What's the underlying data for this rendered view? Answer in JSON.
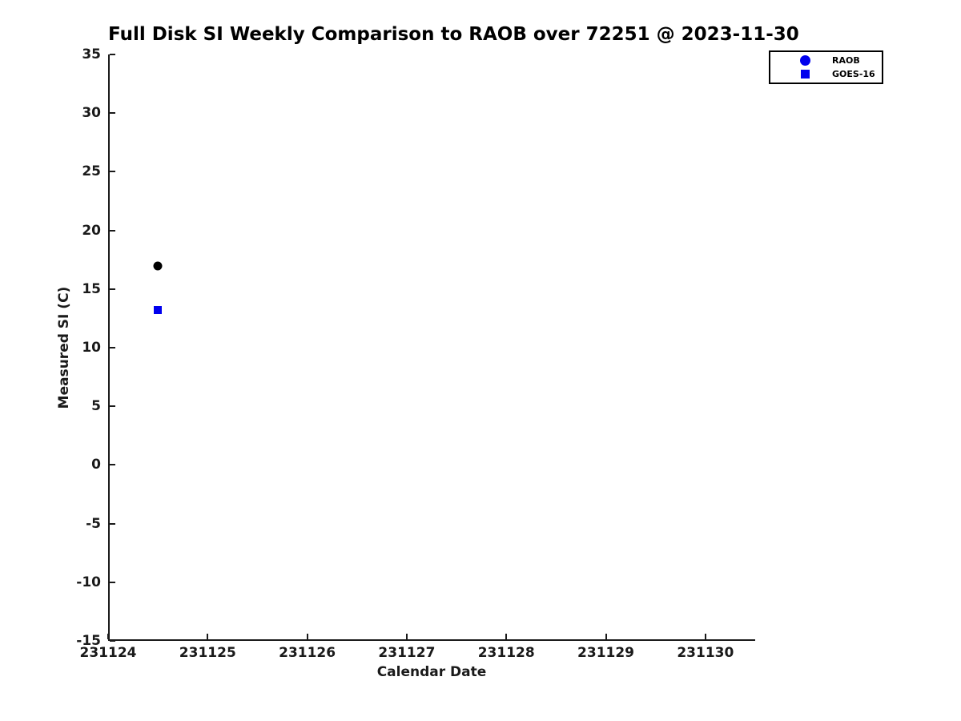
{
  "chart_data": {
    "type": "scatter",
    "title": "Full Disk SI Weekly Comparison to RAOB over 72251 @ 2023-11-30",
    "xlabel": "Calendar Date",
    "ylabel": "Measured SI (C)",
    "xlim": [
      231124,
      231130.5
    ],
    "ylim": [
      -15,
      35
    ],
    "x_ticks": [
      231124,
      231125,
      231126,
      231127,
      231128,
      231129,
      231130
    ],
    "y_ticks": [
      35,
      30,
      25,
      20,
      15,
      10,
      5,
      0,
      -5,
      -10,
      -15
    ],
    "grid": false,
    "axis_color": "#1a1a1a",
    "legend_position": "top-right",
    "series": [
      {
        "name": "RAOB",
        "marker": "circle",
        "marker_color": "#000000",
        "legend_marker_color": "#0000ee",
        "marker_size_px": 11,
        "points": [
          {
            "x": 231124.5,
            "y": 17.0
          }
        ]
      },
      {
        "name": "GOES-16",
        "marker": "square",
        "marker_color": "#0000ee",
        "legend_marker_color": "#0000ee",
        "marker_size_px": 10,
        "points": [
          {
            "x": 231124.5,
            "y": 13.2
          }
        ]
      }
    ]
  }
}
